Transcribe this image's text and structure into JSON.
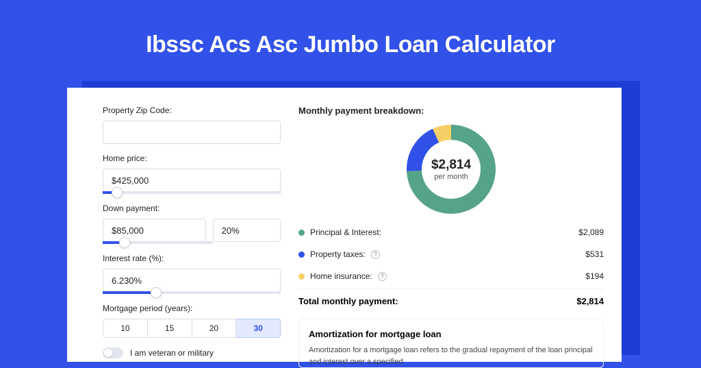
{
  "page": {
    "title": "Ibssc Acs Asc Jumbo Loan Calculator",
    "colors": {
      "page_bg": "#3151e8",
      "card_bg": "#ffffff",
      "shadow_bg": "#1e3dd4",
      "accent": "#3151e8",
      "border": "#d9dbe1"
    }
  },
  "form": {
    "zip": {
      "label": "Property Zip Code:",
      "value": ""
    },
    "home_price": {
      "label": "Home price:",
      "value": "$425,000",
      "slider_pct": 8
    },
    "down_payment": {
      "label": "Down payment:",
      "value": "$85,000",
      "percent": "20%",
      "slider_pct": 20
    },
    "interest_rate": {
      "label": "Interest rate (%):",
      "value": "6.230%",
      "slider_pct": 30
    },
    "mortgage_period": {
      "label": "Mortgage period (years):",
      "options": [
        "10",
        "15",
        "20",
        "30"
      ],
      "selected": "30"
    },
    "veteran": {
      "label": "I am veteran or military",
      "checked": false
    }
  },
  "breakdown": {
    "heading": "Monthly payment breakdown:",
    "center_amount": "$2,814",
    "center_sub": "per month",
    "donut": {
      "radius": 54,
      "stroke": 22,
      "segments": [
        {
          "key": "principal_interest",
          "color": "#55a38a",
          "fraction": 0.742
        },
        {
          "key": "property_taxes",
          "color": "#3151e8",
          "fraction": 0.189
        },
        {
          "key": "home_insurance",
          "color": "#f4cf64",
          "fraction": 0.069
        }
      ]
    },
    "items": [
      {
        "label": "Principal & Interest:",
        "amount": "$2,089",
        "color": "#55a38a",
        "info": false
      },
      {
        "label": "Property taxes:",
        "amount": "$531",
        "color": "#3151e8",
        "info": true
      },
      {
        "label": "Home insurance:",
        "amount": "$194",
        "color": "#f4cf64",
        "info": true
      }
    ],
    "total": {
      "label": "Total monthly payment:",
      "amount": "$2,814"
    }
  },
  "amortization": {
    "heading": "Amortization for mortgage loan",
    "text": "Amortization for a mortgage loan refers to the gradual repayment of the loan principal and interest over a specified"
  }
}
